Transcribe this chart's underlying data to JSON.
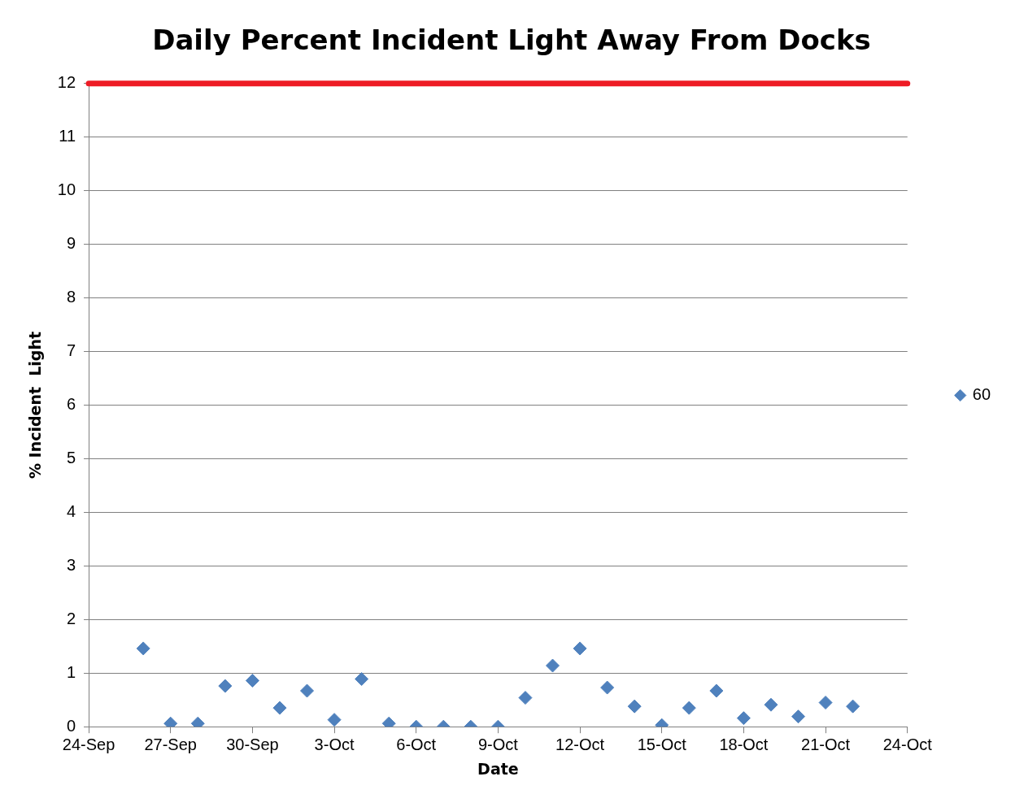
{
  "chart_data": {
    "type": "scatter",
    "title": "Daily Percent Incident Light Away From Docks",
    "xlabel": "Date",
    "ylabel": "% Incident  Light",
    "x": [
      "--09-26",
      "--09-27",
      "--09-28",
      "--09-29",
      "--09-30",
      "--10-01",
      "--10-02",
      "--10-03",
      "--10-04",
      "--10-05",
      "--10-06",
      "--10-07",
      "--10-08",
      "--10-09",
      "--10-10",
      "--10-11",
      "--10-12",
      "--10-13",
      "--10-14",
      "--10-15",
      "--10-16",
      "--10-17",
      "--10-18",
      "--10-19",
      "--10-20",
      "--10-21",
      "--10-22"
    ],
    "series": [
      {
        "name": "60",
        "color": "#4f81bd",
        "values": [
          1.46,
          0.06,
          0.06,
          0.76,
          0.86,
          0.35,
          0.67,
          0.13,
          0.89,
          0.06,
          0,
          0,
          0,
          0,
          0.54,
          1.14,
          1.46,
          0.73,
          0.38,
          0.03,
          0.35,
          0.67,
          0.16,
          0.41,
          0.19,
          0.45,
          0.38
        ]
      }
    ],
    "xlim": [
      "--09-24",
      "--10-24"
    ],
    "xticks": [
      {
        "value": "--09-24",
        "label": "24-Sep"
      },
      {
        "value": "--09-27",
        "label": "27-Sep"
      },
      {
        "value": "--09-30",
        "label": "30-Sep"
      },
      {
        "value": "--10-03",
        "label": "3-Oct"
      },
      {
        "value": "--10-06",
        "label": "6-Oct"
      },
      {
        "value": "--10-09",
        "label": "9-Oct"
      },
      {
        "value": "--10-12",
        "label": "12-Oct"
      },
      {
        "value": "--10-15",
        "label": "15-Oct"
      },
      {
        "value": "--10-18",
        "label": "18-Oct"
      },
      {
        "value": "--10-21",
        "label": "21-Oct"
      },
      {
        "value": "--10-24",
        "label": "24-Oct"
      }
    ],
    "ylim": [
      0,
      12
    ],
    "yticks": [
      0,
      1,
      2,
      3,
      4,
      5,
      6,
      7,
      8,
      9,
      10,
      11,
      12
    ],
    "ref_lines": [
      {
        "axis": "y",
        "value": 12,
        "color": "#ee1c25"
      }
    ],
    "grid": "y",
    "legend": "right",
    "marker": "diamond"
  }
}
